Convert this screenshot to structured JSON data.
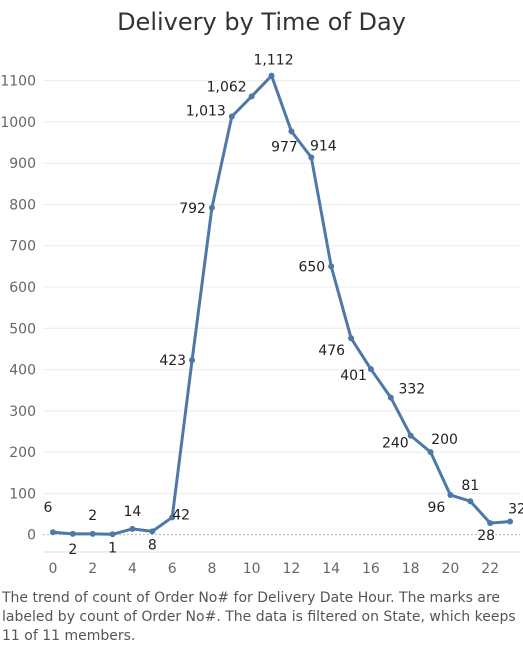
{
  "title": "Delivery by Time of Day",
  "caption": "The trend of count of Order No# for Delivery Date Hour.  The marks are labeled by count of Order No#. The data is filtered on State, which keeps 11 of 11 members.",
  "colors": {
    "line": "#4e79a7",
    "grid": "#ececec",
    "zero": "#b5b5b5"
  },
  "chart_data": {
    "type": "line",
    "title": "Delivery by Time of Day",
    "xlabel": "",
    "ylabel": "",
    "x": [
      0,
      1,
      2,
      3,
      4,
      5,
      6,
      7,
      8,
      9,
      10,
      11,
      12,
      13,
      14,
      15,
      16,
      17,
      18,
      19,
      20,
      21,
      22,
      23
    ],
    "series": [
      {
        "values": [
          6,
          2,
          2,
          1,
          14,
          8,
          42,
          423,
          792,
          1013,
          1062,
          1112,
          977,
          914,
          650,
          476,
          401,
          332,
          240,
          200,
          96,
          81,
          28,
          32
        ]
      }
    ],
    "data_labels": [
      "6",
      "2",
      "2",
      "1",
      "14",
      "8",
      "42",
      "423",
      "792",
      "1,013",
      "1,062",
      "1,112",
      "977",
      "914",
      "650",
      "476",
      "401",
      "332",
      "240",
      "200",
      "96",
      "81",
      "28",
      "32"
    ],
    "xticks": [
      0,
      2,
      4,
      6,
      8,
      10,
      12,
      14,
      16,
      18,
      20,
      22
    ],
    "yticks": [
      0,
      100,
      200,
      300,
      400,
      500,
      600,
      700,
      800,
      900,
      1000,
      1100
    ],
    "xlim": [
      -0.5,
      23.5
    ],
    "ylim": [
      -25,
      1150
    ],
    "grid": true
  }
}
